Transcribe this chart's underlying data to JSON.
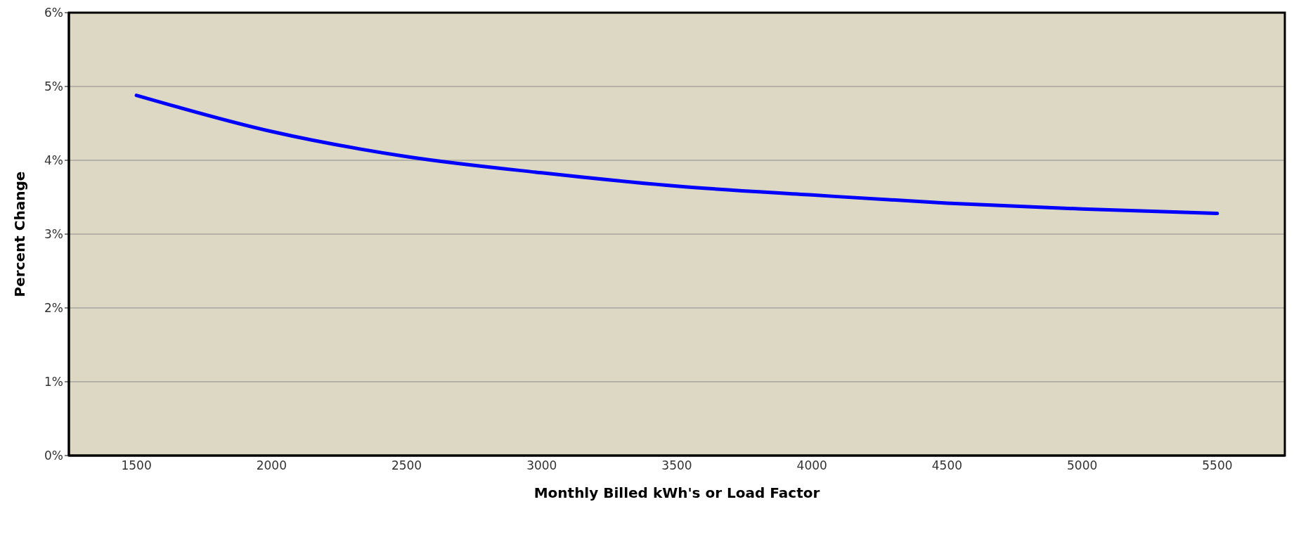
{
  "chart_data": {
    "type": "line",
    "xlabel": "Monthly Billed kWh's or Load Factor",
    "ylabel": "Percent Change",
    "categories": [
      "1500",
      "2000",
      "2500",
      "3000",
      "3500",
      "4000",
      "4500",
      "5000",
      "5500"
    ],
    "series": [
      {
        "color": "#0000ff",
        "values": [
          4.88,
          4.39,
          4.05,
          3.83,
          3.65,
          3.53,
          3.42,
          3.34,
          3.28
        ]
      }
    ],
    "ylim": [
      0,
      6
    ],
    "yticks": [
      {
        "value": 0,
        "label": "0%"
      },
      {
        "value": 1,
        "label": "1%"
      },
      {
        "value": 2,
        "label": "2%"
      },
      {
        "value": 3,
        "label": "3%"
      },
      {
        "value": 4,
        "label": "4%"
      },
      {
        "value": 5,
        "label": "5%"
      },
      {
        "value": 6,
        "label": "6%"
      }
    ],
    "grid": "y",
    "marker": "none",
    "line_style": "solid",
    "legend": false
  }
}
